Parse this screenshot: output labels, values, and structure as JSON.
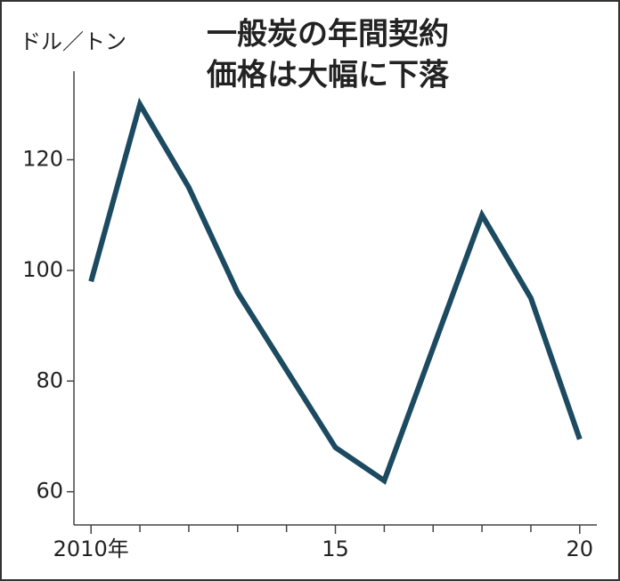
{
  "chart_data": {
    "type": "line",
    "title": [
      "一般炭の年間契約",
      "価格は大幅に下落"
    ],
    "y_label": "ドル／トン",
    "x": [
      2010,
      2011,
      2012,
      2013,
      2014,
      2015,
      2016,
      2017,
      2018,
      2019,
      2020
    ],
    "series": [
      {
        "name": "一般炭の年間契約価格",
        "color": "#1c4a60",
        "values": [
          98,
          130,
          115,
          96,
          82,
          68,
          62,
          86,
          110,
          95,
          69.5
        ]
      }
    ],
    "xlim": [
      2009.65,
      2020.35
    ],
    "xticks": [
      {
        "value": 2010,
        "label": "2010年"
      },
      {
        "value": 2015,
        "label": "15"
      },
      {
        "value": 2020,
        "label": "20"
      }
    ],
    "xminorticks": [
      2011,
      2012,
      2013,
      2014,
      2016,
      2017,
      2018,
      2019
    ],
    "ylim": [
      54,
      136
    ],
    "yticks": [
      60,
      80,
      100,
      120
    ],
    "grid": false
  }
}
